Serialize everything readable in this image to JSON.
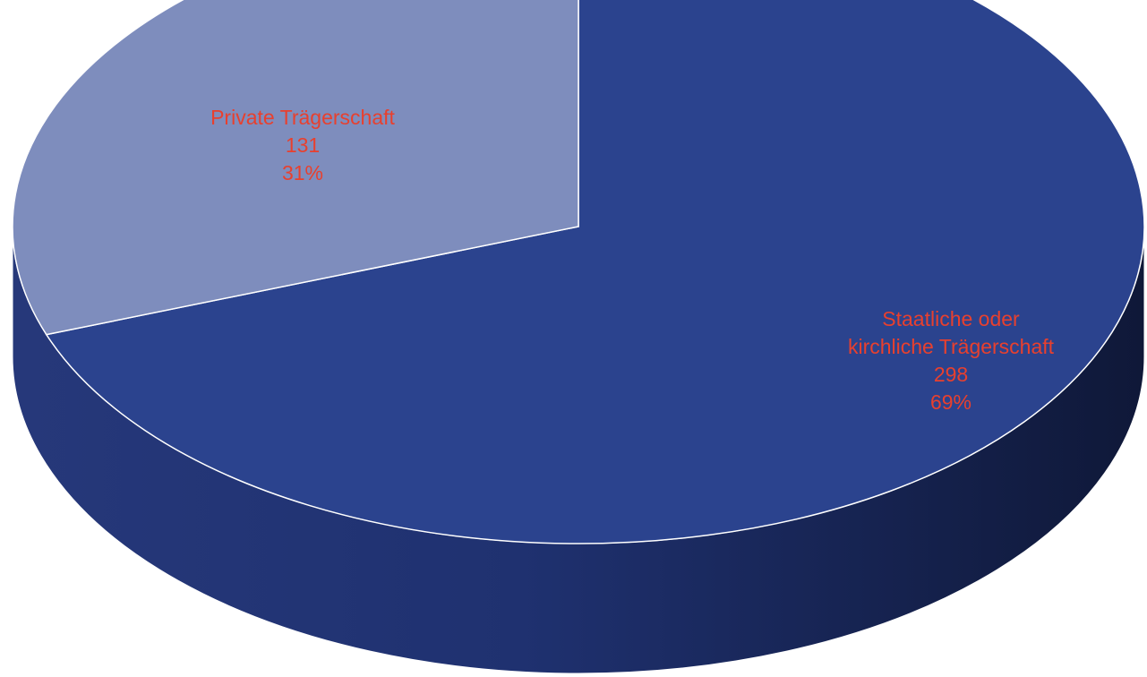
{
  "chart_data": {
    "type": "pie",
    "style": "3d",
    "slices": [
      {
        "label_lines": [
          "Staatliche oder",
          "kirchliche Trägerschaft"
        ],
        "value": 298,
        "percent": "69%",
        "color": "#2b438e"
      },
      {
        "label_lines": [
          "Private Trägerschaft"
        ],
        "value": 131,
        "percent": "31%",
        "color": "#7e8dbd"
      }
    ],
    "label_color": "#e8402e",
    "edge_color": "#ffffff",
    "side_color_light": "#243a7f",
    "side_color_dark": "#111a3e"
  }
}
